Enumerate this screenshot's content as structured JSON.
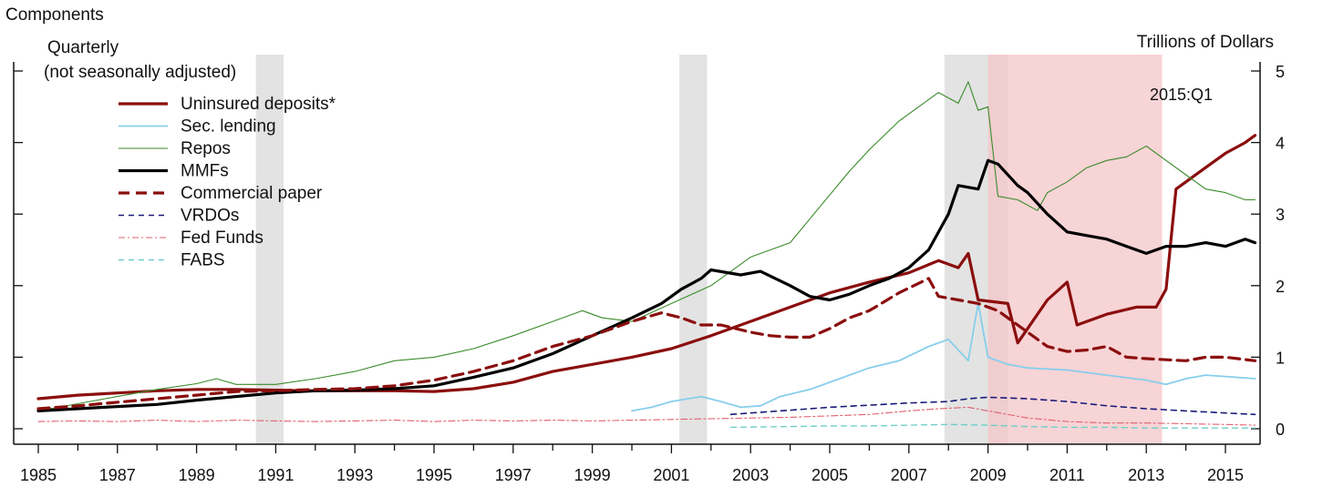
{
  "chart_data": {
    "type": "line",
    "title": "Components",
    "subtitle_lines": [
      "Quarterly",
      "(not seasonally adjusted)"
    ],
    "ylabel": "Trillions of Dollars",
    "xlim": [
      1985,
      2015
    ],
    "ylim": [
      0,
      5
    ],
    "x_ticks": [
      "1985",
      "1987",
      "1989",
      "1991",
      "1993",
      "1995",
      "1997",
      "1999",
      "2001",
      "2003",
      "2005",
      "2007",
      "2009",
      "2011",
      "2013",
      "2015"
    ],
    "y_ticks": [
      "0",
      "1",
      "2",
      "3",
      "4",
      "5"
    ],
    "annotation": "2015:Q1",
    "grid": false,
    "legend_position": "top-left",
    "shaded_periods": [
      {
        "start": 1990.5,
        "end": 1991.2,
        "color": "#d9d9d9"
      },
      {
        "start": 2001.2,
        "end": 2001.9,
        "color": "#d9d9d9"
      },
      {
        "start": 2007.9,
        "end": 2009.5,
        "color": "#d9d9d9"
      },
      {
        "start": 2009.0,
        "end": 2013.4,
        "color": "#f4c5c8"
      }
    ],
    "series": [
      {
        "name": "Uninsured deposits*",
        "color": "#8b0e0e",
        "width": 3.2,
        "dash": "",
        "points": [
          [
            1985,
            0.42
          ],
          [
            1986,
            0.47
          ],
          [
            1987,
            0.5
          ],
          [
            1988,
            0.53
          ],
          [
            1989,
            0.55
          ],
          [
            1990,
            0.55
          ],
          [
            1991,
            0.54
          ],
          [
            1992,
            0.53
          ],
          [
            1993,
            0.53
          ],
          [
            1994,
            0.53
          ],
          [
            1995,
            0.52
          ],
          [
            1996,
            0.56
          ],
          [
            1997,
            0.65
          ],
          [
            1998,
            0.8
          ],
          [
            1999,
            0.9
          ],
          [
            2000,
            1.0
          ],
          [
            2001,
            1.12
          ],
          [
            2002,
            1.3
          ],
          [
            2003,
            1.5
          ],
          [
            2004,
            1.7
          ],
          [
            2005,
            1.9
          ],
          [
            2006,
            2.05
          ],
          [
            2007,
            2.18
          ],
          [
            2007.75,
            2.35
          ],
          [
            2008.25,
            2.25
          ],
          [
            2008.5,
            2.45
          ],
          [
            2008.75,
            1.8
          ],
          [
            2009.5,
            1.75
          ],
          [
            2009.75,
            1.2
          ],
          [
            2010.5,
            1.8
          ],
          [
            2011,
            2.05
          ],
          [
            2011.25,
            1.45
          ],
          [
            2012,
            1.6
          ],
          [
            2012.75,
            1.7
          ],
          [
            2013.25,
            1.7
          ],
          [
            2013.5,
            1.95
          ],
          [
            2013.75,
            3.35
          ],
          [
            2014.5,
            3.65
          ],
          [
            2015,
            3.85
          ],
          [
            2015.5,
            4.0
          ],
          [
            2015.75,
            4.1
          ]
        ]
      },
      {
        "name": "Sec. lending",
        "color": "#87ceeb",
        "width": 1.8,
        "dash": "",
        "points": [
          [
            2000,
            0.25
          ],
          [
            2000.5,
            0.3
          ],
          [
            2001,
            0.38
          ],
          [
            2001.75,
            0.45
          ],
          [
            2002.25,
            0.38
          ],
          [
            2002.75,
            0.3
          ],
          [
            2003.25,
            0.32
          ],
          [
            2003.75,
            0.45
          ],
          [
            2004.5,
            0.55
          ],
          [
            2005.25,
            0.7
          ],
          [
            2006,
            0.85
          ],
          [
            2006.75,
            0.95
          ],
          [
            2007.5,
            1.15
          ],
          [
            2008,
            1.25
          ],
          [
            2008.25,
            1.1
          ],
          [
            2008.5,
            0.95
          ],
          [
            2008.75,
            1.75
          ],
          [
            2009,
            1.0
          ],
          [
            2009.5,
            0.9
          ],
          [
            2010,
            0.85
          ],
          [
            2011,
            0.82
          ],
          [
            2012,
            0.75
          ],
          [
            2013,
            0.68
          ],
          [
            2013.5,
            0.62
          ],
          [
            2014,
            0.7
          ],
          [
            2014.5,
            0.75
          ],
          [
            2015.25,
            0.72
          ],
          [
            2015.75,
            0.7
          ]
        ]
      },
      {
        "name": "Repos",
        "color": "#3a8a2a",
        "width": 1.1,
        "dash": "",
        "points": [
          [
            1985,
            0.25
          ],
          [
            1986,
            0.35
          ],
          [
            1987,
            0.45
          ],
          [
            1988,
            0.55
          ],
          [
            1989,
            0.63
          ],
          [
            1989.5,
            0.7
          ],
          [
            1990,
            0.62
          ],
          [
            1991,
            0.62
          ],
          [
            1992,
            0.7
          ],
          [
            1993,
            0.8
          ],
          [
            1994,
            0.95
          ],
          [
            1995,
            1.0
          ],
          [
            1996,
            1.12
          ],
          [
            1997,
            1.3
          ],
          [
            1998,
            1.5
          ],
          [
            1998.75,
            1.65
          ],
          [
            1999.25,
            1.55
          ],
          [
            2000,
            1.5
          ],
          [
            2001,
            1.75
          ],
          [
            2002,
            2.0
          ],
          [
            2003,
            2.4
          ],
          [
            2004,
            2.6
          ],
          [
            2004.75,
            3.1
          ],
          [
            2005.5,
            3.6
          ],
          [
            2006,
            3.9
          ],
          [
            2006.75,
            4.3
          ],
          [
            2007.25,
            4.5
          ],
          [
            2007.75,
            4.7
          ],
          [
            2008.25,
            4.55
          ],
          [
            2008.5,
            4.85
          ],
          [
            2008.75,
            4.45
          ],
          [
            2009,
            4.5
          ],
          [
            2009.25,
            3.25
          ],
          [
            2009.75,
            3.2
          ],
          [
            2010.25,
            3.05
          ],
          [
            2010.5,
            3.3
          ],
          [
            2011,
            3.45
          ],
          [
            2011.5,
            3.65
          ],
          [
            2012,
            3.75
          ],
          [
            2012.5,
            3.8
          ],
          [
            2013,
            3.95
          ],
          [
            2013.5,
            3.75
          ],
          [
            2014,
            3.55
          ],
          [
            2014.5,
            3.35
          ],
          [
            2015,
            3.3
          ],
          [
            2015.5,
            3.2
          ],
          [
            2015.75,
            3.2
          ]
        ]
      },
      {
        "name": "MMFs",
        "color": "#000000",
        "width": 3.2,
        "dash": "",
        "points": [
          [
            1985,
            0.25
          ],
          [
            1986,
            0.28
          ],
          [
            1987,
            0.31
          ],
          [
            1988,
            0.34
          ],
          [
            1989,
            0.4
          ],
          [
            1990,
            0.45
          ],
          [
            1991,
            0.5
          ],
          [
            1992,
            0.53
          ],
          [
            1993,
            0.54
          ],
          [
            1994,
            0.56
          ],
          [
            1995,
            0.6
          ],
          [
            1996,
            0.72
          ],
          [
            1997,
            0.85
          ],
          [
            1998,
            1.05
          ],
          [
            1999,
            1.3
          ],
          [
            2000,
            1.55
          ],
          [
            2000.75,
            1.75
          ],
          [
            2001.25,
            1.95
          ],
          [
            2001.75,
            2.1
          ],
          [
            2002,
            2.22
          ],
          [
            2002.75,
            2.15
          ],
          [
            2003.25,
            2.2
          ],
          [
            2004,
            2.0
          ],
          [
            2004.5,
            1.85
          ],
          [
            2005,
            1.8
          ],
          [
            2005.5,
            1.88
          ],
          [
            2006,
            2.0
          ],
          [
            2006.5,
            2.1
          ],
          [
            2007,
            2.25
          ],
          [
            2007.5,
            2.5
          ],
          [
            2008,
            3.0
          ],
          [
            2008.25,
            3.4
          ],
          [
            2008.75,
            3.35
          ],
          [
            2009,
            3.75
          ],
          [
            2009.25,
            3.7
          ],
          [
            2009.75,
            3.4
          ],
          [
            2010,
            3.3
          ],
          [
            2010.5,
            3.0
          ],
          [
            2011,
            2.75
          ],
          [
            2011.5,
            2.7
          ],
          [
            2012,
            2.65
          ],
          [
            2012.5,
            2.55
          ],
          [
            2013,
            2.45
          ],
          [
            2013.5,
            2.55
          ],
          [
            2014,
            2.55
          ],
          [
            2014.5,
            2.6
          ],
          [
            2015,
            2.55
          ],
          [
            2015.5,
            2.65
          ],
          [
            2015.75,
            2.6
          ]
        ]
      },
      {
        "name": "Commercial paper",
        "color": "#8b0e0e",
        "width": 3.2,
        "dash": "12,7",
        "points": [
          [
            1985,
            0.28
          ],
          [
            1986,
            0.32
          ],
          [
            1987,
            0.37
          ],
          [
            1988,
            0.42
          ],
          [
            1989,
            0.47
          ],
          [
            1990,
            0.52
          ],
          [
            1991,
            0.53
          ],
          [
            1992,
            0.55
          ],
          [
            1993,
            0.56
          ],
          [
            1994,
            0.6
          ],
          [
            1995,
            0.68
          ],
          [
            1996,
            0.8
          ],
          [
            1997,
            0.95
          ],
          [
            1998,
            1.15
          ],
          [
            1999,
            1.3
          ],
          [
            2000,
            1.5
          ],
          [
            2000.75,
            1.62
          ],
          [
            2001.25,
            1.55
          ],
          [
            2001.75,
            1.45
          ],
          [
            2002.25,
            1.45
          ],
          [
            2003,
            1.35
          ],
          [
            2003.5,
            1.3
          ],
          [
            2004,
            1.28
          ],
          [
            2004.5,
            1.28
          ],
          [
            2005,
            1.4
          ],
          [
            2005.5,
            1.55
          ],
          [
            2006,
            1.65
          ],
          [
            2006.75,
            1.9
          ],
          [
            2007.5,
            2.1
          ],
          [
            2007.75,
            1.85
          ],
          [
            2008.25,
            1.8
          ],
          [
            2008.75,
            1.75
          ],
          [
            2009.25,
            1.65
          ],
          [
            2009.5,
            1.55
          ],
          [
            2010,
            1.35
          ],
          [
            2010.5,
            1.15
          ],
          [
            2011,
            1.08
          ],
          [
            2011.5,
            1.1
          ],
          [
            2012,
            1.15
          ],
          [
            2012.5,
            1.0
          ],
          [
            2013,
            0.98
          ],
          [
            2014,
            0.95
          ],
          [
            2014.5,
            1.0
          ],
          [
            2015,
            1.0
          ],
          [
            2015.75,
            0.95
          ]
        ]
      },
      {
        "name": "VRDOs",
        "color": "#1a1a7a",
        "width": 1.6,
        "dash": "6,5",
        "points": [
          [
            2002.5,
            0.2
          ],
          [
            2003,
            0.22
          ],
          [
            2004,
            0.26
          ],
          [
            2005,
            0.3
          ],
          [
            2006,
            0.33
          ],
          [
            2007,
            0.36
          ],
          [
            2008,
            0.38
          ],
          [
            2008.5,
            0.42
          ],
          [
            2009,
            0.44
          ],
          [
            2010,
            0.42
          ],
          [
            2011,
            0.38
          ],
          [
            2012,
            0.32
          ],
          [
            2013,
            0.28
          ],
          [
            2014,
            0.25
          ],
          [
            2015,
            0.22
          ],
          [
            2015.75,
            0.2
          ]
        ]
      },
      {
        "name": "Fed Funds",
        "color": "#e06070",
        "width": 1.1,
        "dash": "7,3,2,3",
        "points": [
          [
            1985,
            0.1
          ],
          [
            1986,
            0.11
          ],
          [
            1987,
            0.1
          ],
          [
            1988,
            0.12
          ],
          [
            1989,
            0.1
          ],
          [
            1990,
            0.12
          ],
          [
            1991,
            0.11
          ],
          [
            1992,
            0.1
          ],
          [
            1993,
            0.11
          ],
          [
            1994,
            0.12
          ],
          [
            1995,
            0.1
          ],
          [
            1996,
            0.12
          ],
          [
            1997,
            0.11
          ],
          [
            1998,
            0.12
          ],
          [
            1999,
            0.11
          ],
          [
            2000,
            0.12
          ],
          [
            2001,
            0.13
          ],
          [
            2002,
            0.14
          ],
          [
            2003,
            0.15
          ],
          [
            2004,
            0.16
          ],
          [
            2005,
            0.18
          ],
          [
            2006,
            0.2
          ],
          [
            2007,
            0.25
          ],
          [
            2007.75,
            0.28
          ],
          [
            2008.5,
            0.3
          ],
          [
            2009,
            0.25
          ],
          [
            2010,
            0.15
          ],
          [
            2011,
            0.1
          ],
          [
            2012,
            0.08
          ],
          [
            2013,
            0.08
          ],
          [
            2014,
            0.07
          ],
          [
            2015,
            0.06
          ],
          [
            2015.75,
            0.05
          ]
        ]
      },
      {
        "name": "FABS",
        "color": "#6fcfc8",
        "width": 1.4,
        "dash": "6,5",
        "points": [
          [
            2002.5,
            0.02
          ],
          [
            2004,
            0.03
          ],
          [
            2005,
            0.04
          ],
          [
            2006,
            0.04
          ],
          [
            2007,
            0.05
          ],
          [
            2008,
            0.06
          ],
          [
            2009,
            0.05
          ],
          [
            2010,
            0.03
          ],
          [
            2011,
            0.02
          ],
          [
            2012,
            0.02
          ],
          [
            2013,
            0.01
          ],
          [
            2014,
            0.01
          ],
          [
            2015,
            0.01
          ],
          [
            2015.75,
            0.01
          ]
        ]
      }
    ]
  }
}
